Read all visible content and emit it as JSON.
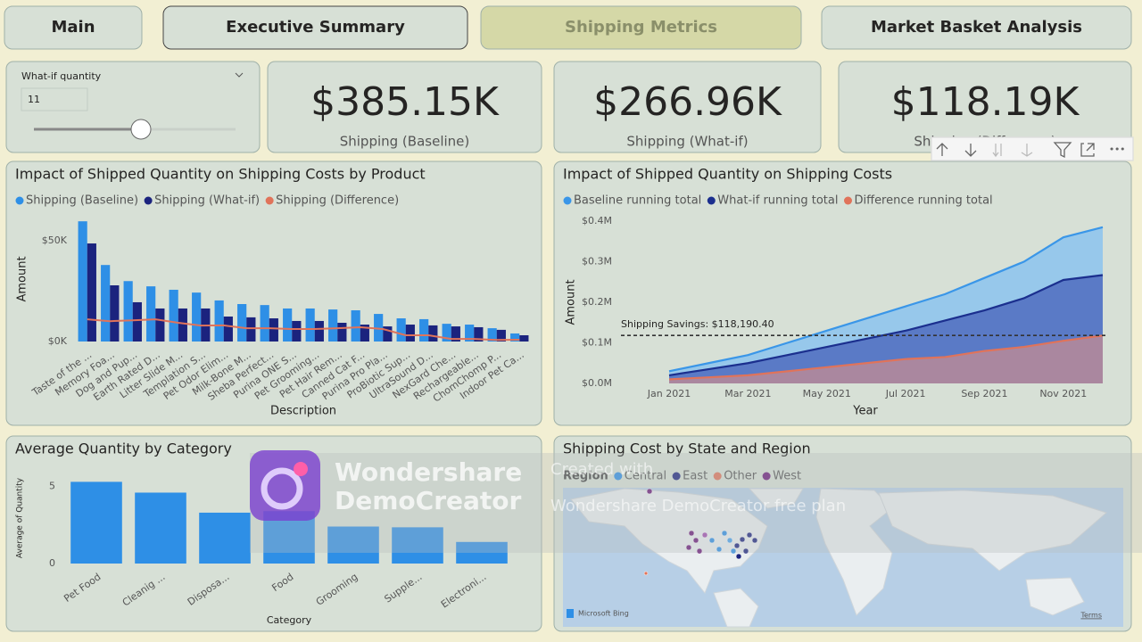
{
  "nav": {
    "tabs": [
      "Main",
      "Executive Summary",
      "Shipping Metrics",
      "Market Basket Analysis"
    ],
    "active": 2
  },
  "slicer": {
    "label": "What-if quantity",
    "value": 11
  },
  "kpis": [
    {
      "value": "$385.15K",
      "label": "Shipping (Baseline)"
    },
    {
      "value": "$266.96K",
      "label": "Shipping (What-if)"
    },
    {
      "value": "$118.19K",
      "label": "Shipping (Difference)"
    }
  ],
  "chart_data": [
    {
      "type": "bar",
      "title": "Impact of Shipped Quantity on Shipping Costs by Product",
      "x_label": "Description",
      "y_label": "Amount",
      "categories": [
        "Taste of the ...",
        "Memory Foa...",
        "Dog and Pup...",
        "Earth Rated D...",
        "Litter Slide M...",
        "Templation S...",
        "Pet Odor Elim...",
        "Milk-Bone M...",
        "Sheba Perfect...",
        "Purina ONE S...",
        "Pet Grooming...",
        "Pet Hair Rem...",
        "Canned Cat F...",
        "Purina Pro Pla...",
        "ProBiotic Sup...",
        "UltraSound D...",
        "NexGard Che...",
        "Rechargeable...",
        "ChomChomp P...",
        "Indoor Pet Ca..."
      ],
      "series": [
        {
          "name": "Shipping (Baseline)",
          "color": "#2e8fe6",
          "values": [
            59.7,
            38,
            30,
            27.4,
            25.7,
            24.3,
            20.4,
            18.6,
            18.1,
            16.4,
            16.4,
            15.9,
            15.5,
            13.7,
            11.5,
            11.1,
            8.8,
            8.4,
            6.6,
            4
          ]
        },
        {
          "name": "Shipping (What-if)",
          "color": "#1b237e",
          "values": [
            48.7,
            27.9,
            19.5,
            16.4,
            16.4,
            16.4,
            12.4,
            12,
            11.5,
            10.2,
            10.2,
            9.3,
            8.4,
            7.5,
            8.4,
            8,
            7.5,
            7.1,
            5.8,
            3.1
          ]
        },
        {
          "name": "Shipping (Difference)",
          "color": "#e0735a",
          "kind": "line",
          "values": [
            11,
            10.1,
            10.5,
            11,
            9.3,
            7.9,
            8,
            6.6,
            6.6,
            6.2,
            6.2,
            6.6,
            7.1,
            6.2,
            3.1,
            3.1,
            1.3,
            1.3,
            0.8,
            0.9
          ]
        }
      ],
      "ylim": [
        0,
        62
      ],
      "yticks": [
        {
          "value": 0,
          "label": "$0K"
        },
        {
          "value": 50,
          "label": "$50K"
        }
      ]
    },
    {
      "type": "area",
      "title": "Impact of Shipped Quantity on Shipping Costs",
      "x_label": "Year",
      "y_label": "Amount",
      "x": [
        "2021-01",
        "2021-02",
        "2021-03",
        "2021-04",
        "2021-05",
        "2021-06",
        "2021-07",
        "2021-08",
        "2021-09",
        "2021-10",
        "2021-11",
        "2021-12"
      ],
      "xticks": [
        {
          "value": "2021-01",
          "label": "Jan 2021"
        },
        {
          "value": "2021-03",
          "label": "Mar 2021"
        },
        {
          "value": "2021-05",
          "label": "May 2021"
        },
        {
          "value": "2021-07",
          "label": "Jul 2021"
        },
        {
          "value": "2021-09",
          "label": "Sep 2021"
        },
        {
          "value": "2021-11",
          "label": "Nov 2021"
        }
      ],
      "series": [
        {
          "name": "Baseline running total",
          "color": "#3a96e8",
          "values": [
            0.03,
            0.05,
            0.07,
            0.1,
            0.13,
            0.16,
            0.19,
            0.22,
            0.26,
            0.3,
            0.36,
            0.385
          ]
        },
        {
          "name": "What-if running total",
          "color": "#1b2f8e",
          "values": [
            0.02,
            0.035,
            0.05,
            0.07,
            0.09,
            0.11,
            0.13,
            0.155,
            0.18,
            0.21,
            0.255,
            0.267
          ]
        },
        {
          "name": "Difference running total",
          "color": "#e0735a",
          "values": [
            0.01,
            0.015,
            0.02,
            0.03,
            0.04,
            0.05,
            0.06,
            0.065,
            0.08,
            0.09,
            0.105,
            0.118
          ]
        }
      ],
      "ylim": [
        0,
        0.4
      ],
      "yticks": [
        {
          "value": 0,
          "label": "$0.0M"
        },
        {
          "value": 0.1,
          "label": "$0.1M"
        },
        {
          "value": 0.2,
          "label": "$0.2M"
        },
        {
          "value": 0.3,
          "label": "$0.3M"
        },
        {
          "value": 0.4,
          "label": "$0.4M"
        }
      ],
      "reference_line": {
        "value": 0.1181904,
        "label": "Shipping Savings: $118,190.40"
      }
    },
    {
      "type": "bar",
      "title": "Average Quantity by Category",
      "x_label": "Category",
      "y_label": "Average of Quantity",
      "categories": [
        "Pet Food",
        "Cleanig ...",
        "Disposa...",
        "Food",
        "Grooming",
        "Supple...",
        "Electroni..."
      ],
      "values": [
        5.3,
        4.6,
        3.3,
        3.4,
        2.4,
        2.35,
        1.4
      ],
      "color": "#2e8fe6",
      "ylim": [
        0,
        5.9
      ],
      "yticks": [
        0,
        5
      ]
    },
    {
      "type": "map",
      "title": "Shipping Cost by State and Region",
      "legend_title": "Region",
      "series": [
        {
          "name": "Central",
          "color": "#2e8fe6"
        },
        {
          "name": "East",
          "color": "#1b237e"
        },
        {
          "name": "Other",
          "color": "#e0735a"
        },
        {
          "name": "West",
          "color": "#6b1a7a"
        }
      ],
      "attribution": "Microsoft Bing",
      "terms": "Terms"
    }
  ],
  "watermark": {
    "brand": [
      "Wondershare",
      "DemoCreator"
    ],
    "note": [
      "Created with",
      "Wondershare DemoCreator free plan"
    ]
  }
}
